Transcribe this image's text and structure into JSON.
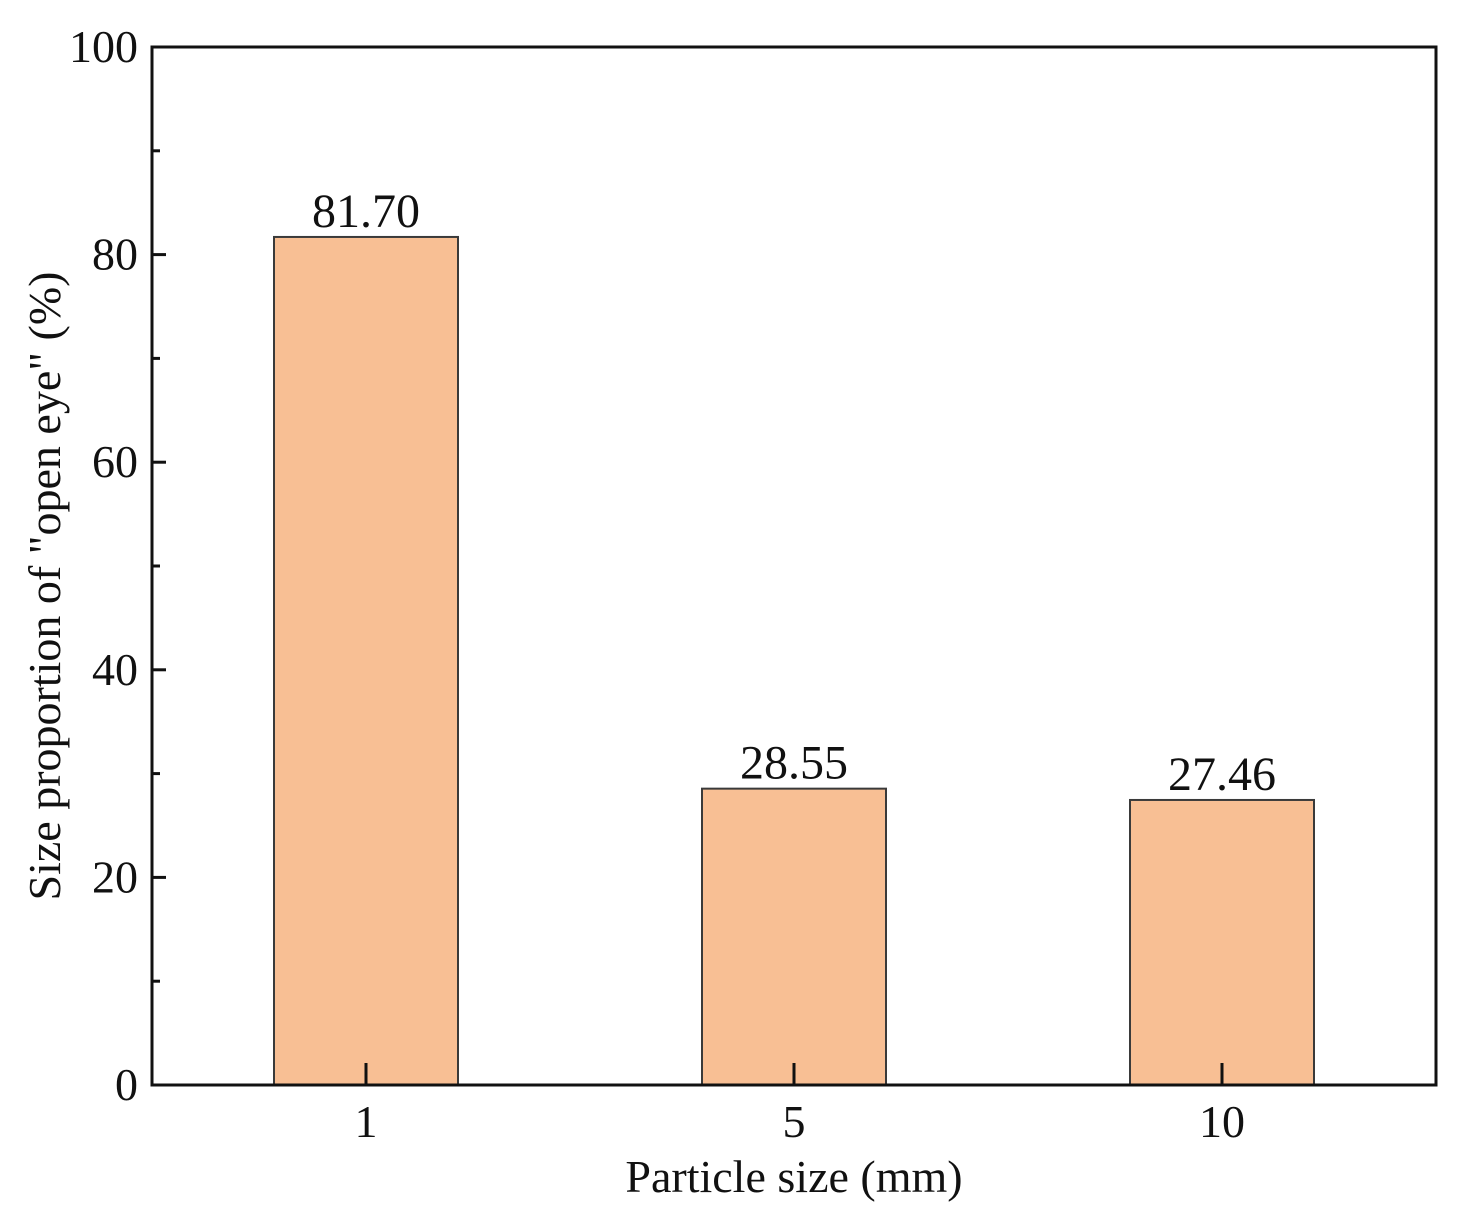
{
  "chart_data": {
    "type": "bar",
    "categories": [
      "1",
      "5",
      "10"
    ],
    "values": [
      81.7,
      28.55,
      27.46
    ],
    "data_labels": [
      "81.70",
      "28.55",
      "27.46"
    ],
    "title": "",
    "xlabel": "Particle size (mm)",
    "ylabel": "Size proportion of \"open eye\" (%)",
    "ylim": [
      0,
      100
    ],
    "yticks": [
      0,
      20,
      40,
      60,
      80,
      100
    ],
    "ytick_labels": [
      "0",
      "20",
      "40",
      "60",
      "80",
      "100"
    ],
    "minor_yticks": [
      10,
      30,
      50,
      70,
      90
    ],
    "grid": false,
    "legend": "none",
    "colors": {
      "bar_fill": "#f8bf94",
      "bar_stroke": "#3a3a3a",
      "axis": "#111111"
    }
  }
}
